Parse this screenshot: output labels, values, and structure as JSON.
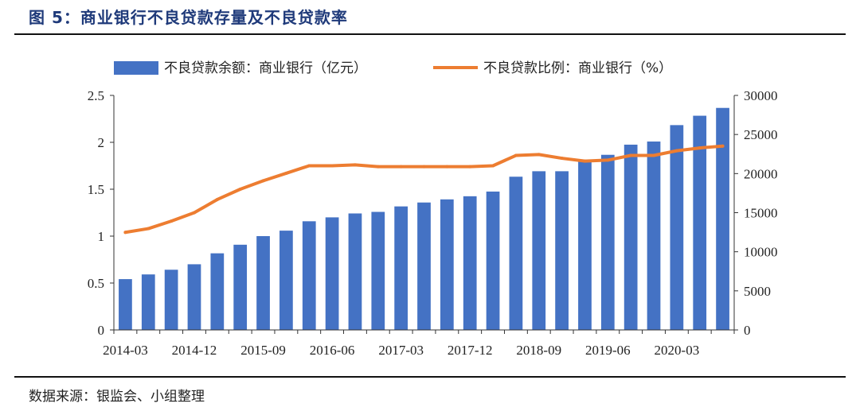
{
  "figure": {
    "title": "图 5：商业银行不良贷款存量及不良贷款率",
    "source": "数据来源：银监会、小组整理"
  },
  "colors": {
    "bar": "#4472C4",
    "line": "#ED7D31",
    "title": "#1f3a7a"
  },
  "chart_data": {
    "type": "bar+line",
    "legend_position": "top",
    "grid": false,
    "left_axis": {
      "ylim": [
        0,
        2.5
      ],
      "ticks": [
        0,
        0.5,
        1,
        1.5,
        2,
        2.5
      ],
      "tick_labels": [
        "0",
        "0.5",
        "1",
        "1.5",
        "2",
        "2.5"
      ]
    },
    "right_axis": {
      "ylim": [
        0,
        30000
      ],
      "ticks": [
        0,
        5000,
        10000,
        15000,
        20000,
        25000,
        30000
      ],
      "tick_labels": [
        "0",
        "5000",
        "10000",
        "15000",
        "20000",
        "25000",
        "30000"
      ]
    },
    "x_tick_labels": [
      "2014-03",
      "2014-12",
      "2015-09",
      "2016-06",
      "2017-03",
      "2017-12",
      "2018-09",
      "2019-06",
      "2020-03"
    ],
    "categories": [
      "2014-03",
      "2014-06",
      "2014-09",
      "2014-12",
      "2015-03",
      "2015-06",
      "2015-09",
      "2015-12",
      "2016-03",
      "2016-06",
      "2016-09",
      "2016-12",
      "2017-03",
      "2017-06",
      "2017-09",
      "2017-12",
      "2018-03",
      "2018-06",
      "2018-09",
      "2018-12",
      "2019-03",
      "2019-06",
      "2019-09",
      "2019-12",
      "2020-03",
      "2020-06",
      "2020-09"
    ],
    "series": [
      {
        "name": "不良贷款余额：商业银行（亿元）",
        "type": "bar",
        "axis": "right",
        "values": [
          6500,
          7100,
          7700,
          8400,
          9800,
          10900,
          12000,
          12700,
          13900,
          14400,
          14900,
          15100,
          15800,
          16300,
          16700,
          17100,
          17700,
          19600,
          20300,
          20300,
          21600,
          22400,
          23700,
          24100,
          26200,
          27400,
          28400
        ]
      },
      {
        "name": "不良贷款比例：商业银行（%）",
        "type": "line",
        "axis": "left",
        "values": [
          1.04,
          1.08,
          1.16,
          1.25,
          1.39,
          1.5,
          1.59,
          1.67,
          1.75,
          1.75,
          1.76,
          1.74,
          1.74,
          1.74,
          1.74,
          1.74,
          1.75,
          1.86,
          1.87,
          1.83,
          1.8,
          1.81,
          1.86,
          1.86,
          1.91,
          1.94,
          1.96
        ]
      }
    ]
  }
}
